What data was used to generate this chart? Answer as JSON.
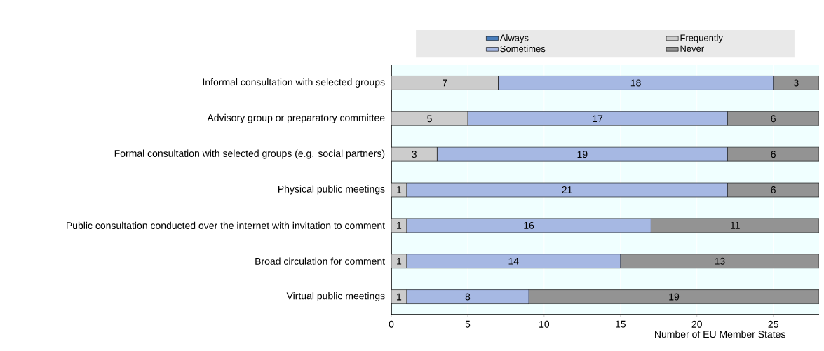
{
  "chart_data": {
    "type": "bar",
    "orientation": "horizontal",
    "stacked": true,
    "categories": [
      "Informal consultation with selected groups",
      "Advisory group or preparatory committee",
      "Formal consultation with selected groups (e.g. social partners)",
      "Physical public meetings",
      "Public consultation conducted over the internet with invitation to comment",
      "Broad circulation for comment",
      "Virtual public meetings"
    ],
    "series": [
      {
        "name": "Always",
        "color": "#4a7ebb",
        "values": [
          0,
          0,
          0,
          0,
          0,
          0,
          0
        ],
        "value_labels": [
          null,
          null,
          null,
          null,
          null,
          null,
          null
        ]
      },
      {
        "name": "Frequently",
        "color": "#cccccc",
        "values": [
          7,
          5,
          3,
          1,
          1,
          1,
          1
        ],
        "value_labels": [
          "7",
          "5",
          "3",
          "1",
          "1",
          "1",
          "1"
        ]
      },
      {
        "name": "Sometimes",
        "color": "#a6b8e3",
        "values": [
          18,
          17,
          19,
          21,
          16,
          14,
          8
        ],
        "value_labels": [
          "18",
          "17",
          "19",
          "21",
          "16",
          "14",
          "8"
        ]
      },
      {
        "name": "Never",
        "color": "#939393",
        "values": [
          3,
          6,
          6,
          6,
          11,
          13,
          19
        ],
        "value_labels": [
          "3",
          "6",
          "6",
          "6",
          "11",
          "13",
          "19"
        ]
      }
    ],
    "xlim": [
      0,
      28
    ],
    "xticks": [
      0,
      5,
      10,
      15,
      20,
      25
    ],
    "xlabel": "Number of EU Member States",
    "grid": "x",
    "legend": "top"
  }
}
